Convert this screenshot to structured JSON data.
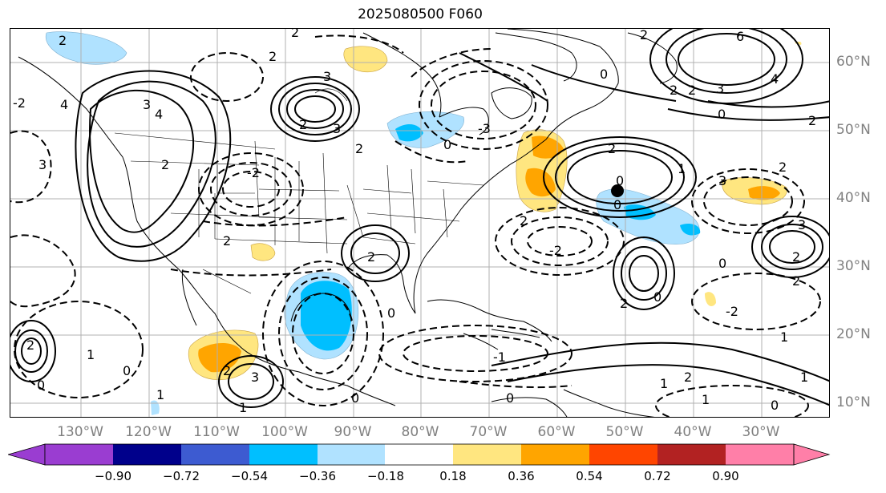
{
  "title": "2025080500 F060",
  "lon_labels": [
    "130°W",
    "120°W",
    "110°W",
    "100°W",
    "90°W",
    "80°W",
    "70°W",
    "60°W",
    "50°W",
    "40°W",
    "30°W"
  ],
  "lat_labels": [
    "60°N",
    "50°N",
    "40°N",
    "30°N",
    "20°N",
    "10°N"
  ],
  "colorbar": {
    "ticks": [
      "−0.90",
      "−0.72",
      "−0.54",
      "−0.36",
      "−0.18",
      "0.18",
      "0.36",
      "0.54",
      "0.72",
      "0.90"
    ],
    "colors": {
      "below_min": "#9a3dd1",
      "bins": [
        "#9a3dd1",
        "#00008b",
        "#3d5bd1",
        "#00bfff",
        "#b0e2ff",
        "#ffffff",
        "#ffe680",
        "#ffa500",
        "#ff4500",
        "#b22222",
        "#ff7fa8"
      ],
      "above_max": "#ff7fa8"
    }
  },
  "contour_labels": {
    "a": "2",
    "b": "3",
    "c": "4",
    "d": "-2",
    "e": "6",
    "f": "0",
    "g": "-1",
    "h": "1",
    "i": "-3"
  },
  "marker": "storm-center-dot"
}
